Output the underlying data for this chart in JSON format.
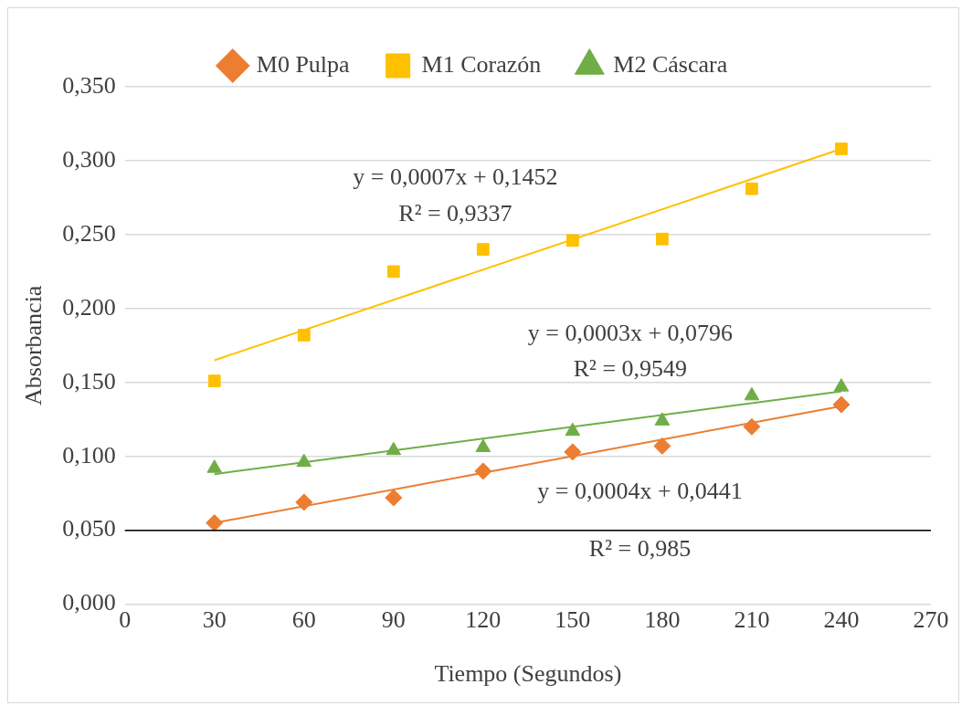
{
  "chart_data": {
    "type": "scatter",
    "xlabel": "Tiempo (Segundos)",
    "ylabel": "Absorbancia",
    "xlim": [
      0,
      270
    ],
    "xticks": [
      0,
      30,
      60,
      90,
      120,
      150,
      180,
      210,
      240,
      270
    ],
    "ylim": [
      0,
      0.35
    ],
    "yticks": [
      {
        "value": 0,
        "label": "0,000"
      },
      {
        "value": 0.05,
        "label": "0,050"
      },
      {
        "value": 0.1,
        "label": "0,100"
      },
      {
        "value": 0.15,
        "label": "0,150"
      },
      {
        "value": 0.2,
        "label": "0,200"
      },
      {
        "value": 0.25,
        "label": "0,250"
      },
      {
        "value": 0.3,
        "label": "0,300"
      },
      {
        "value": 0.35,
        "label": "0,350"
      }
    ],
    "grid": "y",
    "legend": "top",
    "x": [
      30,
      60,
      90,
      120,
      150,
      180,
      210,
      240
    ],
    "series": [
      {
        "name": "M0 Pulpa",
        "color": "#ed7d31",
        "marker": "diamond",
        "values": [
          0.055,
          0.069,
          0.072,
          0.09,
          0.103,
          0.107,
          0.12,
          0.135
        ]
      },
      {
        "name": "M1 Corazón",
        "color": "#ffc000",
        "marker": "square",
        "values": [
          0.151,
          0.182,
          0.225,
          0.24,
          0.246,
          0.247,
          0.281,
          0.308
        ]
      },
      {
        "name": "M2 Cáscara",
        "color": "#70ad47",
        "marker": "triangle",
        "values": [
          0.092,
          0.096,
          0.104,
          0.106,
          0.117,
          0.124,
          0.141,
          0.147
        ]
      },
      {
        "type": "line",
        "color": "#ed7d31",
        "values": [
          0.055,
          null,
          null,
          null,
          null,
          null,
          null,
          0.134
        ]
      },
      {
        "type": "line",
        "color": "#ffc000",
        "values": [
          0.165,
          null,
          null,
          null,
          null,
          null,
          null,
          0.308
        ]
      },
      {
        "type": "line",
        "color": "#70ad47",
        "values": [
          0.088,
          null,
          null,
          null,
          null,
          null,
          null,
          0.144
        ]
      }
    ],
    "ref_lines": [
      {
        "axis": "y",
        "value": 0.05,
        "color": "#000000"
      }
    ],
    "annotations": [
      "y = 0,0007x + 0,1452",
      "R² = 0,9337",
      "y = 0,0003x + 0,0796",
      "R² = 0,9549",
      "y = 0,0004x + 0,0441",
      "R² = 0,985"
    ]
  }
}
